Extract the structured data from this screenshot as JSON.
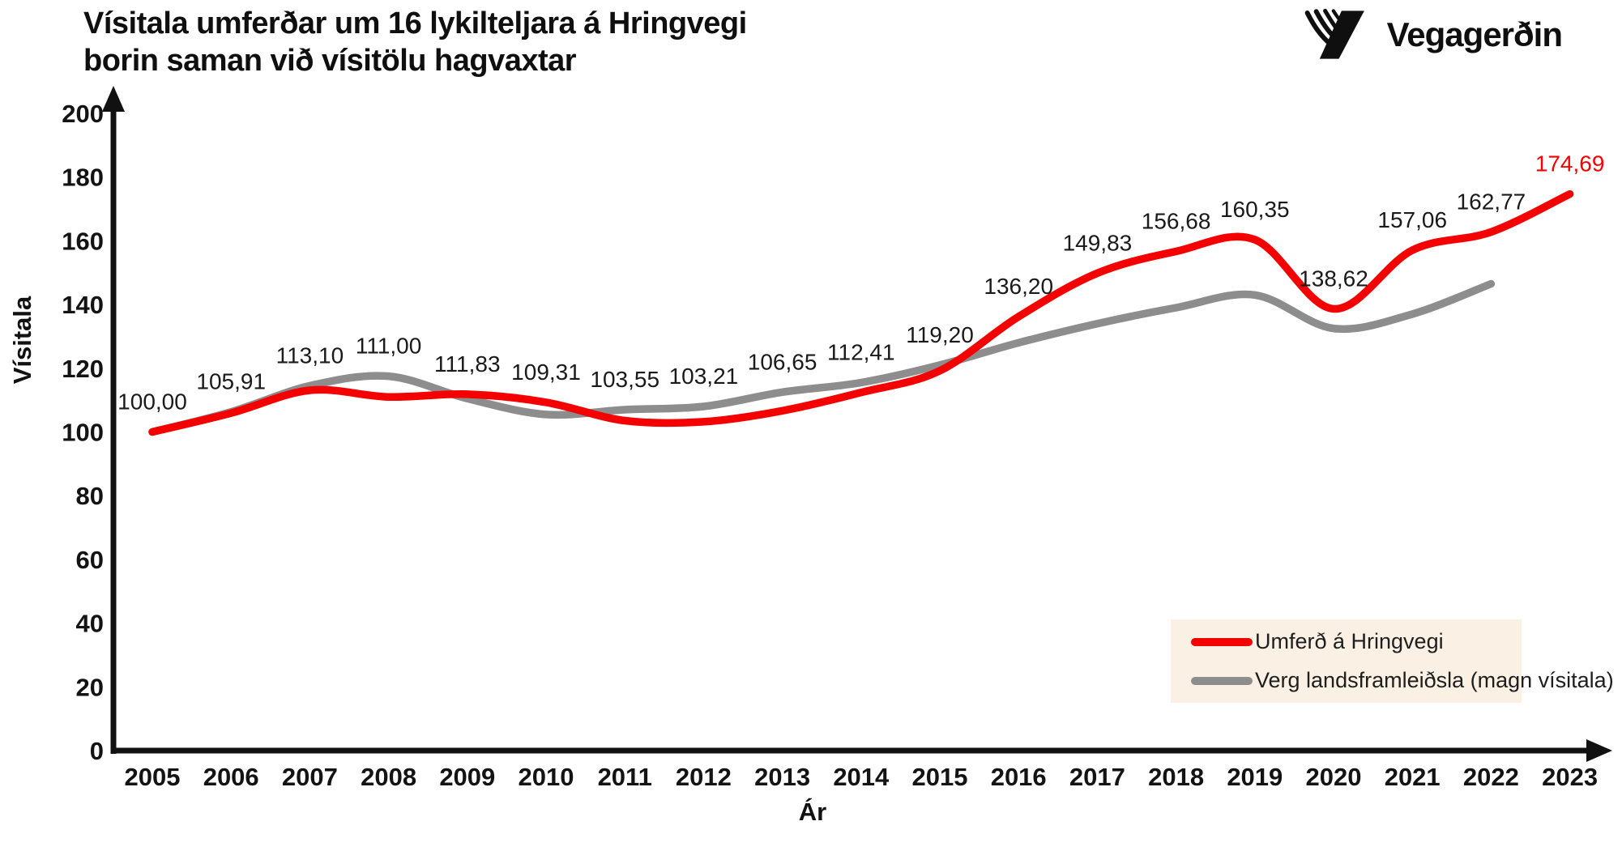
{
  "header": {
    "title_line1": "Vísitala umferðar um 16 lykilteljara á Hringvegi",
    "title_line2": "borin saman við vísitölu hagvaxtar",
    "logo_text": "Vegagerðin"
  },
  "chart_data": {
    "type": "line",
    "title": "Vísitala umferðar um 16 lykilteljara á Hringvegi borin saman við vísitölu hagvaxtar",
    "xlabel": "Ár",
    "ylabel": "Vísitala",
    "x": [
      2005,
      2006,
      2007,
      2008,
      2009,
      2010,
      2011,
      2012,
      2013,
      2014,
      2015,
      2016,
      2017,
      2018,
      2019,
      2020,
      2021,
      2022,
      2023
    ],
    "ylim": [
      0,
      200
    ],
    "ytick_step": 20,
    "grid": false,
    "legend_position": "bottom-right",
    "axis_color": "#111111",
    "series": [
      {
        "name": "Umferð á Hringvegi",
        "color": "#F40000",
        "values": [
          100.0,
          105.91,
          113.1,
          111.0,
          111.83,
          109.31,
          103.55,
          103.21,
          106.65,
          112.41,
          119.2,
          136.2,
          149.83,
          156.68,
          160.35,
          138.62,
          157.06,
          162.77,
          174.69
        ],
        "point_labels": [
          "100,00",
          "105,91",
          "113,10",
          "111,00",
          "111,83",
          "109,31",
          "103,55",
          "103,21",
          "106,65",
          "112,41",
          "119,20",
          "136,20",
          "149,83",
          "156,68",
          "160,35",
          "138,62",
          "157,06",
          "162,77",
          "174,69"
        ],
        "label_color": "#1a1a1a",
        "last_label_color": "#F40000"
      },
      {
        "name": "Verg landsframleiðsla (magn vísitala)",
        "color": "#8D8D8D",
        "values": [
          100.0,
          106.3,
          114.5,
          117.5,
          110.5,
          105.5,
          107.0,
          108.0,
          112.5,
          115.5,
          121.0,
          128.0,
          134.0,
          139.0,
          143.0,
          132.5,
          137.0,
          146.5,
          null
        ],
        "point_labels": []
      }
    ]
  },
  "legend": {
    "background": "#FAF1E4"
  }
}
